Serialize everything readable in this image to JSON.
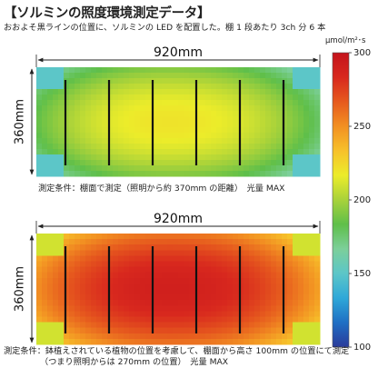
{
  "title": "【ソルミンの照度環境測定データ】",
  "subtitle": "おおよそ黒ラインの位置に、ソルミンの LED を配置した。棚 1 段あたり 3ch 分 6 本",
  "unit": "μmol/m²･s",
  "colors": {
    "scale": [
      "#2a3a9a",
      "#1f6fc4",
      "#2fa8d8",
      "#5cc6c8",
      "#7ccf9a",
      "#5fbf4a",
      "#a8d23a",
      "#ecec2a",
      "#f7c12a",
      "#f29022",
      "#e65a1e",
      "#d8281e",
      "#c4141c"
    ],
    "line": "#111111"
  },
  "chart_data": [
    {
      "type": "heatmap",
      "panel": "top",
      "width_label": "920mm",
      "height_label": "360mm",
      "condition": "測定条件：棚面で測定（照明から約 370mm の距離）　光量 MAX",
      "light_lines": 6,
      "value_range": [
        100,
        300
      ],
      "center_value": 220,
      "edge_value": 165,
      "corner_value": 140
    },
    {
      "type": "heatmap",
      "panel": "bottom",
      "width_label": "920mm",
      "height_label": "360mm",
      "condition_line1": "測定条件：鉢植えされている植物の位置を考慮して、棚面から高さ 100mm の位置にて測定",
      "condition_line2": "（つまり照明からは 270mm の位置）　光量 MAX",
      "light_lines": 6,
      "value_range": [
        100,
        300
      ],
      "center_value": 290,
      "edge_value": 230,
      "corner_value": 200
    },
    {
      "type": "colorbar",
      "range": [
        100,
        300
      ],
      "ticks": [
        100,
        150,
        200,
        250,
        300
      ]
    }
  ]
}
